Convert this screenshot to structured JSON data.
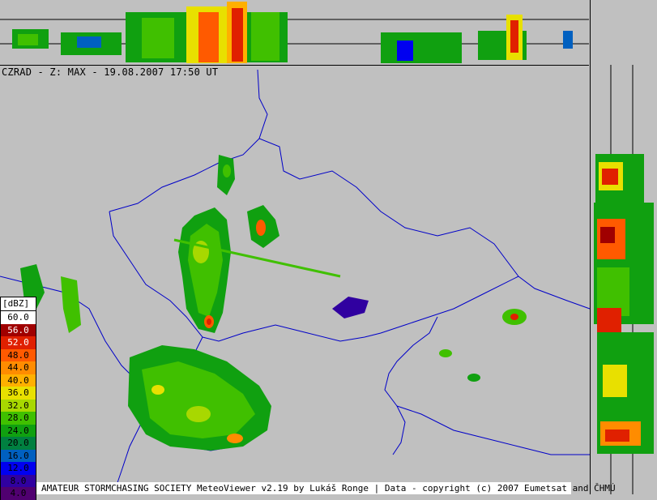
{
  "title": "CZRAD - Z: MAX - 19.08.2007 17:50 UT",
  "legend": {
    "unit": "[dBZ]",
    "levels": [
      {
        "label": "60.0",
        "color": "#ffffff",
        "text": "#000000"
      },
      {
        "label": "56.0",
        "color": "#a00000",
        "text": "#ffffff"
      },
      {
        "label": "52.0",
        "color": "#e02000",
        "text": "#ffffff"
      },
      {
        "label": "48.0",
        "color": "#ff5a00",
        "text": "#000000"
      },
      {
        "label": "44.0",
        "color": "#ff8c00",
        "text": "#000000"
      },
      {
        "label": "40.0",
        "color": "#ffb000",
        "text": "#000000"
      },
      {
        "label": "36.0",
        "color": "#e8e000",
        "text": "#000000"
      },
      {
        "label": "32.0",
        "color": "#a8d800",
        "text": "#000000"
      },
      {
        "label": "28.0",
        "color": "#40c000",
        "text": "#000000"
      },
      {
        "label": "24.0",
        "color": "#10a010",
        "text": "#000000"
      },
      {
        "label": "20.0",
        "color": "#008040",
        "text": "#000000"
      },
      {
        "label": "16.0",
        "color": "#0060c0",
        "text": "#000000"
      },
      {
        "label": "12.0",
        "color": "#0000f0",
        "text": "#000000"
      },
      {
        "label": "8.0",
        "color": "#3000a0",
        "text": "#000000"
      },
      {
        "label": "4.0",
        "color": "#500070",
        "text": "#000000"
      }
    ]
  },
  "footer": "AMATEUR STORMCHASING SOCIETY MeteoViewer v2.19 by Lukáš Ronge | Data - copyright (c) 2007 Eumetsat and ČHMÚ",
  "colors": {
    "background": "#c0c0c0",
    "border": "#0000c8"
  }
}
